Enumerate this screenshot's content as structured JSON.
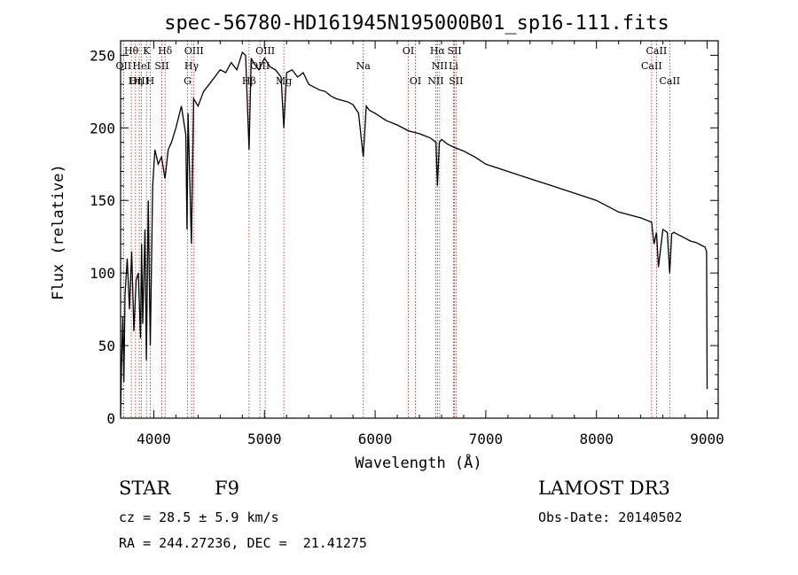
{
  "chart_data": {
    "type": "line",
    "title": "spec-56780-HD161945N195000B01_sp16-111.fits",
    "xlabel": "Wavelength (Å)",
    "ylabel": "Flux (relative)",
    "xlim": [
      3700,
      9100
    ],
    "ylim": [
      0,
      260
    ],
    "xticks": [
      4000,
      5000,
      6000,
      7000,
      8000,
      9000
    ],
    "yticks": [
      0,
      50,
      100,
      150,
      200,
      250
    ],
    "x": [
      3700,
      3710,
      3720,
      3730,
      3740,
      3760,
      3780,
      3800,
      3820,
      3840,
      3860,
      3880,
      3890,
      3900,
      3920,
      3933,
      3950,
      3968,
      3990,
      4010,
      4040,
      4070,
      4101,
      4130,
      4160,
      4200,
      4250,
      4290,
      4300,
      4310,
      4340,
      4360,
      4400,
      4450,
      4500,
      4550,
      4600,
      4650,
      4700,
      4750,
      4800,
      4830,
      4861,
      4880,
      4900,
      4950,
      5000,
      5050,
      5100,
      5150,
      5175,
      5200,
      5250,
      5300,
      5350,
      5400,
      5450,
      5500,
      5550,
      5600,
      5650,
      5700,
      5750,
      5800,
      5850,
      5893,
      5920,
      5950,
      6000,
      6100,
      6200,
      6300,
      6400,
      6500,
      6550,
      6563,
      6580,
      6600,
      6650,
      6700,
      6800,
      6900,
      7000,
      7200,
      7400,
      7600,
      7800,
      8000,
      8200,
      8400,
      8498,
      8520,
      8542,
      8560,
      8600,
      8640,
      8662,
      8680,
      8700,
      8750,
      8800,
      8850,
      8900,
      8950,
      8980,
      8995,
      9000
    ],
    "y": [
      2,
      40,
      70,
      25,
      85,
      110,
      75,
      115,
      60,
      95,
      100,
      55,
      120,
      65,
      130,
      40,
      150,
      50,
      160,
      185,
      175,
      180,
      165,
      185,
      190,
      200,
      215,
      195,
      130,
      210,
      120,
      220,
      215,
      225,
      230,
      235,
      240,
      238,
      245,
      240,
      252,
      250,
      185,
      248,
      245,
      240,
      248,
      242,
      240,
      235,
      200,
      238,
      240,
      235,
      238,
      230,
      228,
      226,
      225,
      222,
      220,
      219,
      218,
      216,
      210,
      180,
      215,
      212,
      210,
      205,
      202,
      198,
      196,
      193,
      190,
      160,
      190,
      192,
      189,
      187,
      184,
      180,
      175,
      170,
      165,
      160,
      155,
      150,
      142,
      138,
      135,
      120,
      128,
      104,
      130,
      128,
      100,
      127,
      128,
      126,
      124,
      122,
      121,
      119,
      118,
      115,
      20
    ],
    "line_markers": [
      {
        "name": "Hθ",
        "wavelength": 3797,
        "row": 1
      },
      {
        "name": "OII",
        "wavelength": 3727,
        "row": 2
      },
      {
        "name": "OIII",
        "wavelength": 3869,
        "row": 3
      },
      {
        "name": "K",
        "wavelength": 3934,
        "row": 1
      },
      {
        "name": "HeI",
        "wavelength": 3889,
        "row": 2
      },
      {
        "name": "Hη",
        "wavelength": 3835,
        "row": 3
      },
      {
        "name": "Hδ",
        "wavelength": 4102,
        "row": 1
      },
      {
        "name": "SII",
        "wavelength": 4072,
        "row": 2
      },
      {
        "name": "H",
        "wavelength": 3968,
        "row": 3
      },
      {
        "name": "OIII",
        "wavelength": 4363,
        "row": 1
      },
      {
        "name": "Hγ",
        "wavelength": 4341,
        "row": 2
      },
      {
        "name": "G",
        "wavelength": 4305,
        "row": 3
      },
      {
        "name": "OIII",
        "wavelength": 5007,
        "row": 1
      },
      {
        "name": "OIII",
        "wavelength": 4959,
        "row": 2
      },
      {
        "name": "Hβ",
        "wavelength": 4861,
        "row": 3
      },
      {
        "name": "Mg",
        "wavelength": 5175,
        "row": 3
      },
      {
        "name": "Na",
        "wavelength": 5893,
        "row": 2
      },
      {
        "name": "OI",
        "wavelength": 6300,
        "row": 1
      },
      {
        "name": "OI",
        "wavelength": 6364,
        "row": 3
      },
      {
        "name": "Hα",
        "wavelength": 6563,
        "row": 1
      },
      {
        "name": "NII",
        "wavelength": 6583,
        "row": 2
      },
      {
        "name": "NII",
        "wavelength": 6548,
        "row": 3
      },
      {
        "name": "SII",
        "wavelength": 6717,
        "row": 1
      },
      {
        "name": "Li",
        "wavelength": 6708,
        "row": 2
      },
      {
        "name": "SII",
        "wavelength": 6731,
        "row": 3
      },
      {
        "name": "CaII",
        "wavelength": 8542,
        "row": 1
      },
      {
        "name": "CaII",
        "wavelength": 8498,
        "row": 2
      },
      {
        "name": "CaII",
        "wavelength": 8662,
        "row": 3
      }
    ],
    "marker_color": "#b22222"
  },
  "info": {
    "object_class": "STAR",
    "subclass": "F9",
    "survey": "LAMOST DR3",
    "redshift": "cz = 28.5 ± 5.9 km/s",
    "obs_date": "Obs-Date: 20140502",
    "coords": "RA = 244.27236, DEC =  21.41275"
  }
}
